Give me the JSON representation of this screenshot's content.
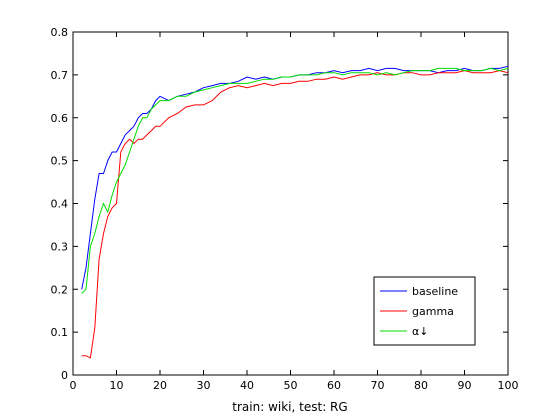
{
  "chart_data": {
    "type": "line",
    "title": "",
    "xlabel": "train: wiki, test: RG",
    "ylabel": "",
    "xlim": [
      0,
      100
    ],
    "ylim": [
      0,
      0.8
    ],
    "xticks": [
      0,
      10,
      20,
      30,
      40,
      50,
      60,
      70,
      80,
      90,
      100
    ],
    "yticks": [
      0,
      0.1,
      0.2,
      0.3,
      0.4,
      0.5,
      0.6,
      0.7,
      0.8
    ],
    "grid": false,
    "legend_position": "bottom-right",
    "series": [
      {
        "name": "baseline",
        "color": "#0000ff",
        "x": [
          2,
          3,
          4,
          5,
          6,
          7,
          8,
          9,
          10,
          11,
          12,
          13,
          14,
          15,
          16,
          17,
          18,
          19,
          20,
          22,
          24,
          26,
          28,
          30,
          32,
          34,
          36,
          38,
          40,
          42,
          44,
          46,
          48,
          50,
          52,
          54,
          56,
          58,
          60,
          62,
          64,
          66,
          68,
          70,
          72,
          74,
          76,
          78,
          80,
          82,
          84,
          86,
          88,
          90,
          92,
          94,
          96,
          98,
          100
        ],
        "y": [
          0.2,
          0.25,
          0.33,
          0.41,
          0.47,
          0.47,
          0.5,
          0.52,
          0.52,
          0.54,
          0.56,
          0.57,
          0.58,
          0.6,
          0.61,
          0.61,
          0.62,
          0.64,
          0.65,
          0.64,
          0.65,
          0.655,
          0.66,
          0.67,
          0.675,
          0.68,
          0.68,
          0.685,
          0.695,
          0.69,
          0.695,
          0.69,
          0.695,
          0.695,
          0.7,
          0.7,
          0.705,
          0.705,
          0.71,
          0.705,
          0.71,
          0.71,
          0.715,
          0.71,
          0.715,
          0.715,
          0.71,
          0.71,
          0.71,
          0.71,
          0.705,
          0.71,
          0.71,
          0.715,
          0.71,
          0.71,
          0.715,
          0.715,
          0.72
        ]
      },
      {
        "name": "gamma",
        "color": "#ff0000",
        "x": [
          2,
          3,
          4,
          5,
          6,
          7,
          8,
          9,
          10,
          11,
          12,
          13,
          14,
          15,
          16,
          17,
          18,
          19,
          20,
          22,
          24,
          26,
          28,
          30,
          32,
          34,
          36,
          38,
          40,
          42,
          44,
          46,
          48,
          50,
          52,
          54,
          56,
          58,
          60,
          62,
          64,
          66,
          68,
          70,
          72,
          74,
          76,
          78,
          80,
          82,
          84,
          86,
          88,
          90,
          92,
          94,
          96,
          98,
          100
        ],
        "y": [
          0.045,
          0.045,
          0.04,
          0.11,
          0.27,
          0.33,
          0.37,
          0.39,
          0.4,
          0.52,
          0.54,
          0.55,
          0.54,
          0.55,
          0.55,
          0.56,
          0.57,
          0.58,
          0.58,
          0.6,
          0.61,
          0.625,
          0.63,
          0.63,
          0.64,
          0.66,
          0.67,
          0.675,
          0.67,
          0.675,
          0.68,
          0.675,
          0.68,
          0.68,
          0.685,
          0.685,
          0.69,
          0.69,
          0.695,
          0.69,
          0.695,
          0.7,
          0.7,
          0.705,
          0.7,
          0.7,
          0.705,
          0.705,
          0.7,
          0.7,
          0.705,
          0.705,
          0.705,
          0.71,
          0.705,
          0.705,
          0.705,
          0.71,
          0.705
        ]
      },
      {
        "name": "α↓",
        "color": "#00dd00",
        "x": [
          2,
          3,
          4,
          5,
          6,
          7,
          8,
          9,
          10,
          11,
          12,
          13,
          14,
          15,
          16,
          17,
          18,
          19,
          20,
          22,
          24,
          26,
          28,
          30,
          32,
          34,
          36,
          38,
          40,
          42,
          44,
          46,
          48,
          50,
          52,
          54,
          56,
          58,
          60,
          62,
          64,
          66,
          68,
          70,
          72,
          74,
          76,
          78,
          80,
          82,
          84,
          86,
          88,
          90,
          92,
          94,
          96,
          98,
          100
        ],
        "y": [
          0.19,
          0.2,
          0.3,
          0.33,
          0.37,
          0.4,
          0.38,
          0.42,
          0.45,
          0.47,
          0.49,
          0.52,
          0.55,
          0.58,
          0.6,
          0.6,
          0.62,
          0.63,
          0.64,
          0.64,
          0.65,
          0.65,
          0.66,
          0.665,
          0.67,
          0.675,
          0.68,
          0.68,
          0.68,
          0.685,
          0.69,
          0.69,
          0.695,
          0.695,
          0.7,
          0.7,
          0.7,
          0.705,
          0.705,
          0.7,
          0.705,
          0.705,
          0.705,
          0.7,
          0.705,
          0.7,
          0.705,
          0.71,
          0.71,
          0.71,
          0.715,
          0.715,
          0.715,
          0.71,
          0.71,
          0.71,
          0.715,
          0.71,
          0.715
        ]
      }
    ]
  }
}
